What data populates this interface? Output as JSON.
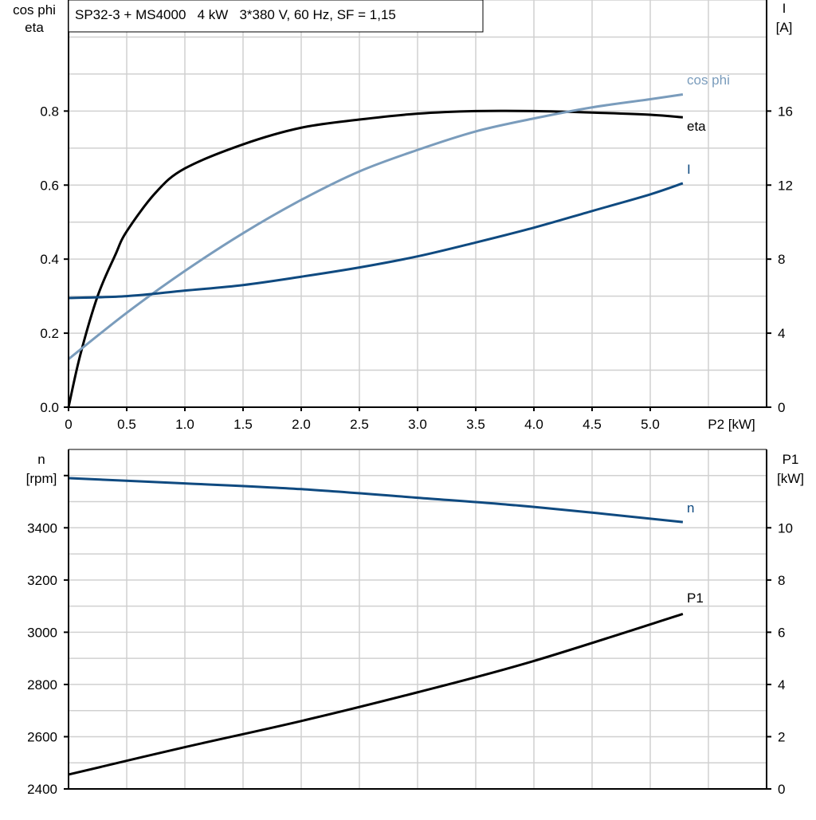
{
  "chart_data": [
    {
      "type": "line",
      "title": "SP32-3 + MS4000   4 kW   3*380 V, 60 Hz, SF = 1,15",
      "xlabel": "P2 [kW]",
      "ylabel_left": [
        "cos phi",
        "eta"
      ],
      "ylabel_right": [
        "I",
        "[A]"
      ],
      "xlim": [
        0,
        6
      ],
      "ylim_left": [
        0,
        1.1
      ],
      "ylim_right": [
        0,
        22
      ],
      "x_ticks": [
        "0",
        "0.5",
        "1.0",
        "1.5",
        "2.0",
        "2.5",
        "3.0",
        "3.5",
        "4.0",
        "4.5",
        "5.0"
      ],
      "y_ticks_left": [
        "0.0",
        "0.2",
        "0.4",
        "0.6",
        "0.8"
      ],
      "y_ticks_right": [
        "0",
        "4",
        "8",
        "12",
        "16"
      ],
      "grid": true,
      "series": [
        {
          "name": "eta",
          "axis": "left",
          "color": "#000000",
          "x": [
            0,
            0.1,
            0.25,
            0.4,
            0.5,
            0.75,
            1.0,
            1.5,
            2.0,
            2.5,
            3.0,
            3.5,
            4.0,
            4.5,
            5.0,
            5.28
          ],
          "y": [
            0,
            0.14,
            0.3,
            0.41,
            0.475,
            0.58,
            0.645,
            0.71,
            0.755,
            0.777,
            0.793,
            0.8,
            0.8,
            0.796,
            0.79,
            0.783
          ]
        },
        {
          "name": "cos phi",
          "axis": "left",
          "color": "#7a9cbc",
          "x": [
            0,
            0.5,
            1.0,
            1.5,
            2.0,
            2.5,
            3.0,
            3.5,
            4.0,
            4.5,
            5.0,
            5.28
          ],
          "y": [
            0.13,
            0.255,
            0.368,
            0.47,
            0.56,
            0.637,
            0.695,
            0.745,
            0.78,
            0.81,
            0.832,
            0.845
          ]
        },
        {
          "name": "I",
          "axis": "right",
          "color": "#0f4a80",
          "x": [
            0,
            0.5,
            1.0,
            1.5,
            2.0,
            2.5,
            3.0,
            3.5,
            4.0,
            4.5,
            5.0,
            5.28
          ],
          "y": [
            5.9,
            6.0,
            6.3,
            6.6,
            7.05,
            7.55,
            8.15,
            8.9,
            9.7,
            10.6,
            11.5,
            12.1
          ]
        }
      ]
    },
    {
      "type": "line",
      "xlim": [
        0,
        6
      ],
      "ylabel_left": [
        "n",
        "[rpm]"
      ],
      "ylabel_right": [
        "P1",
        "[kW]"
      ],
      "ylim_left": [
        2400,
        3700
      ],
      "ylim_right": [
        0,
        13
      ],
      "y_ticks_left": [
        "2400",
        "2600",
        "2800",
        "3000",
        "3200",
        "3400"
      ],
      "y_ticks_right": [
        "0",
        "2",
        "4",
        "6",
        "8",
        "10"
      ],
      "grid": true,
      "series": [
        {
          "name": "n",
          "axis": "left",
          "color": "#0f4a80",
          "x": [
            0,
            1,
            2,
            3,
            4,
            5.28
          ],
          "y": [
            3590,
            3570,
            3548,
            3515,
            3480,
            3422
          ]
        },
        {
          "name": "P1",
          "axis": "right",
          "color": "#000000",
          "x": [
            0,
            1,
            2,
            3,
            4,
            5.28
          ],
          "y": [
            0.55,
            1.6,
            2.6,
            3.7,
            4.9,
            6.7
          ]
        }
      ]
    }
  ]
}
